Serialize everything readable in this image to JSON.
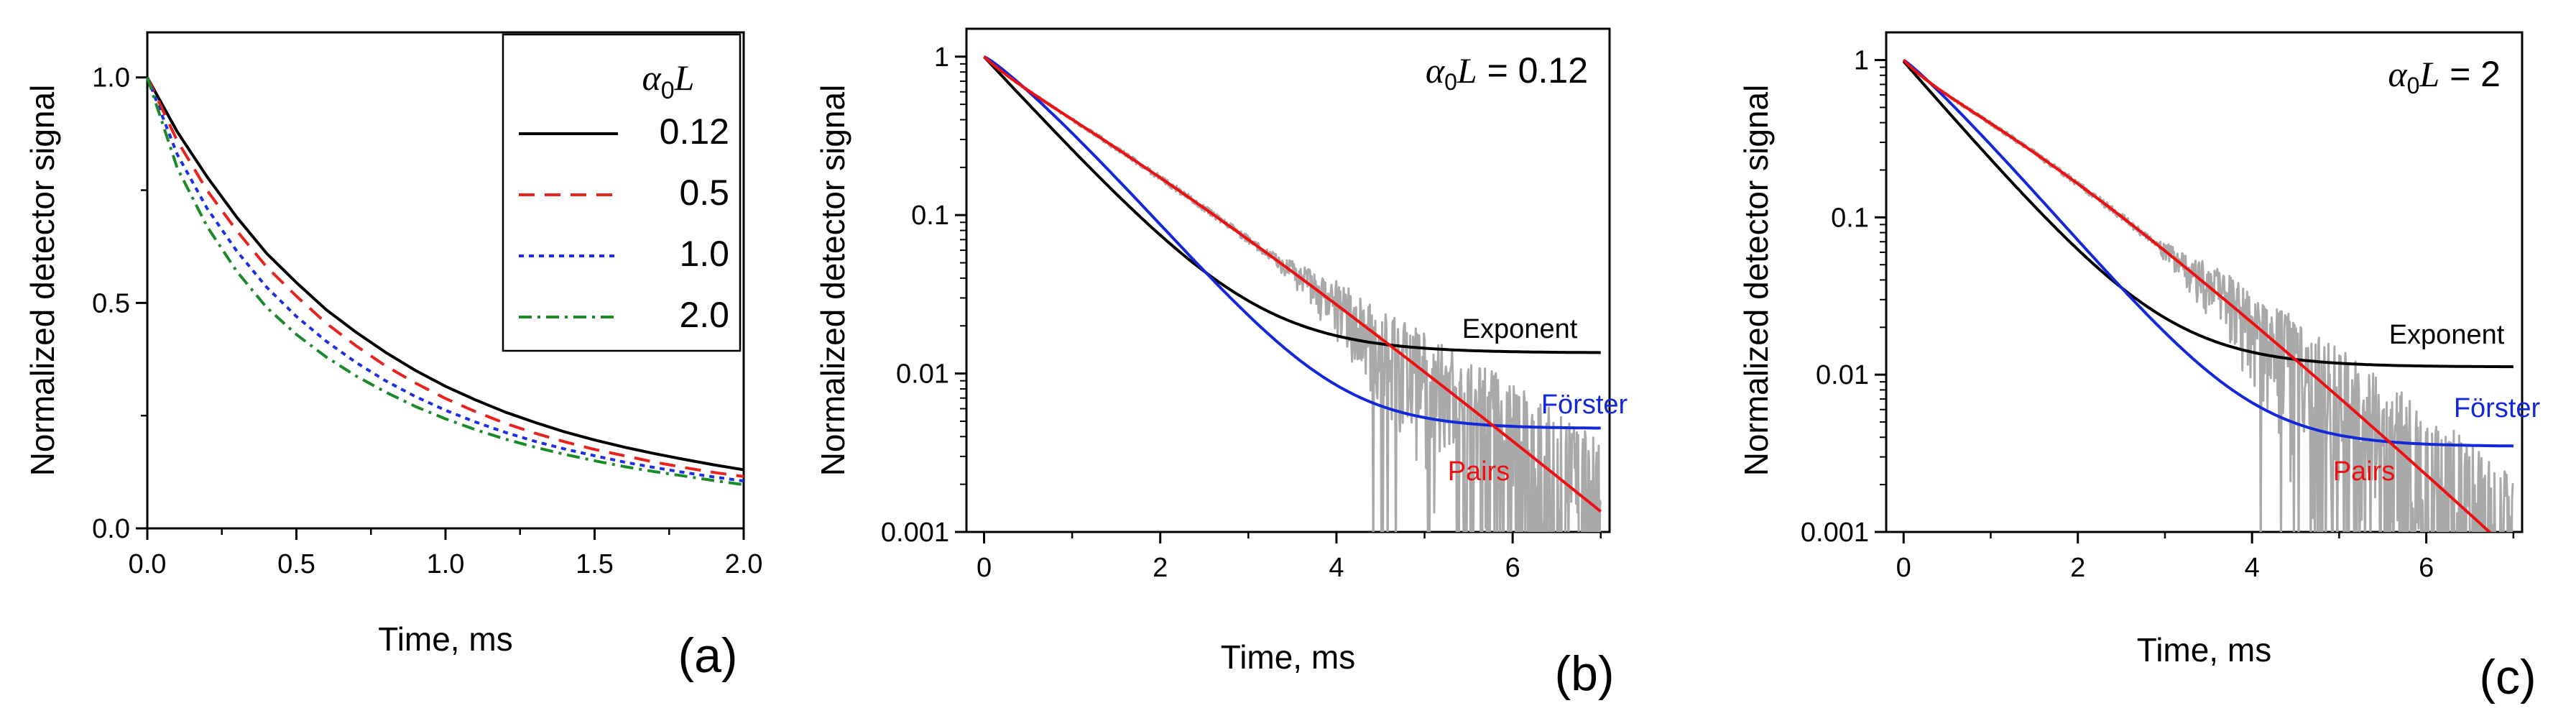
{
  "figure": {
    "background": "#ffffff"
  },
  "chart_data": [
    {
      "id": "a",
      "type": "line",
      "panel_label": "(a)",
      "xlabel": "Time, ms",
      "ylabel": "Normalized detector signal",
      "xlim": [
        0,
        2.0
      ],
      "ylim": [
        0,
        1.1
      ],
      "yscale": "linear",
      "xticks": [
        0.0,
        0.5,
        1.0,
        1.5,
        2.0
      ],
      "xtick_labels": [
        "0.0",
        "0.5",
        "1.0",
        "1.5",
        "2.0"
      ],
      "yticks": [
        0.0,
        0.5,
        1.0
      ],
      "ytick_labels": [
        "0.0",
        "0.5",
        "1.0"
      ],
      "legend": {
        "title_symbol": "α",
        "title_sub": "0",
        "title_var": "L",
        "position": "top-right"
      },
      "series": [
        {
          "name": "0.12",
          "color": "#000000",
          "style": "solid",
          "x": [
            0,
            0.1,
            0.2,
            0.3,
            0.4,
            0.5,
            0.6,
            0.7,
            0.8,
            0.9,
            1.0,
            1.1,
            1.2,
            1.3,
            1.4,
            1.5,
            1.6,
            1.7,
            1.8,
            1.9,
            2.0
          ],
          "y": [
            1.0,
            0.88,
            0.78,
            0.69,
            0.61,
            0.545,
            0.485,
            0.435,
            0.39,
            0.35,
            0.315,
            0.285,
            0.258,
            0.235,
            0.214,
            0.196,
            0.18,
            0.166,
            0.153,
            0.141,
            0.13
          ]
        },
        {
          "name": "0.5",
          "color": "#e8231d",
          "style": "dashed",
          "x": [
            0,
            0.1,
            0.2,
            0.3,
            0.4,
            0.5,
            0.6,
            0.7,
            0.8,
            0.9,
            1.0,
            1.1,
            1.2,
            1.3,
            1.4,
            1.5,
            1.6,
            1.7,
            1.8,
            1.9,
            2.0
          ],
          "y": [
            1.0,
            0.86,
            0.75,
            0.66,
            0.58,
            0.515,
            0.455,
            0.405,
            0.36,
            0.322,
            0.288,
            0.259,
            0.233,
            0.211,
            0.192,
            0.175,
            0.161,
            0.147,
            0.135,
            0.124,
            0.115
          ]
        },
        {
          "name": "1.0",
          "color": "#1a2ee8",
          "style": "dotted",
          "x": [
            0,
            0.1,
            0.2,
            0.3,
            0.4,
            0.5,
            0.6,
            0.7,
            0.8,
            0.9,
            1.0,
            1.1,
            1.2,
            1.3,
            1.4,
            1.5,
            1.6,
            1.7,
            1.8,
            1.9,
            2.0
          ],
          "y": [
            1.0,
            0.83,
            0.71,
            0.615,
            0.535,
            0.47,
            0.415,
            0.368,
            0.327,
            0.292,
            0.262,
            0.236,
            0.213,
            0.193,
            0.176,
            0.161,
            0.147,
            0.135,
            0.124,
            0.114,
            0.105
          ]
        },
        {
          "name": "2.0",
          "color": "#1d8a2a",
          "style": "dashdot",
          "x": [
            0,
            0.1,
            0.2,
            0.3,
            0.4,
            0.5,
            0.6,
            0.7,
            0.8,
            0.9,
            1.0,
            1.1,
            1.2,
            1.3,
            1.4,
            1.5,
            1.6,
            1.7,
            1.8,
            1.9,
            2.0
          ],
          "y": [
            1.0,
            0.8,
            0.67,
            0.57,
            0.49,
            0.43,
            0.38,
            0.338,
            0.302,
            0.27,
            0.243,
            0.219,
            0.198,
            0.18,
            0.164,
            0.15,
            0.137,
            0.126,
            0.116,
            0.106,
            0.097
          ]
        }
      ]
    },
    {
      "id": "b",
      "type": "line",
      "panel_label": "(b)",
      "xlabel": "Time, ms",
      "ylabel": "Normalized detector signal",
      "xlim": [
        -0.2,
        7.1
      ],
      "ylim": [
        0.001,
        1.5
      ],
      "yscale": "log",
      "xticks": [
        0,
        2,
        4,
        6
      ],
      "xtick_labels": [
        "0",
        "2",
        "4",
        "6"
      ],
      "yticks": [
        0.001,
        0.01,
        0.1,
        1
      ],
      "ytick_labels": [
        "0.001",
        "0.01",
        "0.1",
        "1"
      ],
      "annotation": {
        "symbol": "α",
        "sub": "0",
        "var": "L",
        "text": " = 0.12"
      },
      "noise": {
        "name": "experimental data",
        "color": "#a9a9a9",
        "t_start": 0,
        "t_end": 7,
        "amp_start": 0.03,
        "amp_end": 1.1,
        "noise_from_t": 3.2
      },
      "series": [
        {
          "name": "Exponent",
          "label": "Exponent",
          "color": "#000000",
          "model": "exponent",
          "params": {
            "a": 0.985,
            "tau": 0.72,
            "c": 0.0135
          }
        },
        {
          "name": "Förster",
          "label": "Förster",
          "color": "#1328d8",
          "model": "forster",
          "params": {
            "a": 1.0,
            "k": 1.12,
            "p": 1.15,
            "c": 0.0045
          }
        },
        {
          "name": "Pairs",
          "label": "Pairs",
          "color": "#ee1010",
          "model": "pairs",
          "params": {
            "a": 1.0,
            "k": 1.155,
            "p": 1.0,
            "q": 0.55
          }
        }
      ]
    },
    {
      "id": "c",
      "type": "line",
      "panel_label": "(c)",
      "xlabel": "Time, ms",
      "ylabel": "Normalized detector signal",
      "xlim": [
        -0.2,
        7.1
      ],
      "ylim": [
        0.001,
        1.5
      ],
      "yscale": "log",
      "xticks": [
        0,
        2,
        4,
        6
      ],
      "xtick_labels": [
        "0",
        "2",
        "4",
        "6"
      ],
      "yticks": [
        0.001,
        0.01,
        0.1,
        1
      ],
      "ytick_labels": [
        "0.001",
        "0.01",
        "0.1",
        "1"
      ],
      "annotation": {
        "symbol": "α",
        "sub": "0",
        "var": "L",
        "text": " = 2"
      },
      "noise": {
        "name": "experimental data",
        "color": "#a9a9a9",
        "t_start": 0,
        "t_end": 7,
        "amp_start": 0.03,
        "amp_end": 1.3,
        "noise_from_t": 2.8
      },
      "series": [
        {
          "name": "Exponent",
          "label": "Exponent",
          "color": "#000000",
          "model": "exponent",
          "params": {
            "a": 0.97,
            "tau": 0.68,
            "c": 0.0112
          }
        },
        {
          "name": "Förster",
          "label": "Förster",
          "color": "#1328d8",
          "model": "forster",
          "params": {
            "a": 1.0,
            "k": 1.25,
            "p": 1.1,
            "c": 0.0035
          }
        },
        {
          "name": "Pairs",
          "label": "Pairs",
          "color": "#ee1010",
          "model": "pairs",
          "params": {
            "a": 1.0,
            "k": 1.3,
            "p": 1.0,
            "q": 0.9
          }
        }
      ]
    }
  ]
}
